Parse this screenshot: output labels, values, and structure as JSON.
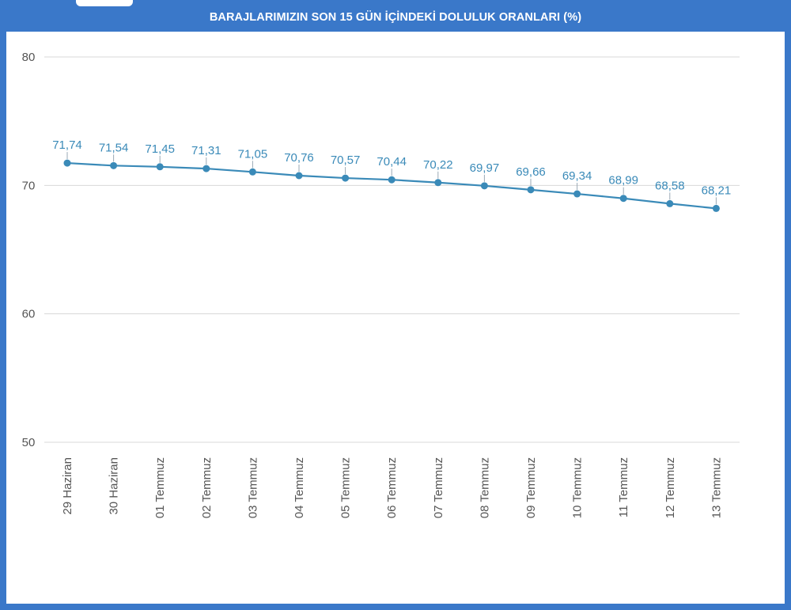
{
  "colors": {
    "frame": "#3a78c9",
    "series": "#3a8ab8",
    "grid": "#d8d8d8",
    "tick_text": "#555555"
  },
  "chart_data": {
    "type": "line",
    "title": "BARAJLARIMIZIN SON 15 GÜN İÇİNDEKİ DOLULUK ORANLARI (%)",
    "xlabel": "",
    "ylabel": "",
    "ylim": [
      50,
      80
    ],
    "yticks": [
      50,
      60,
      70,
      80
    ],
    "grid": true,
    "legend": "none",
    "categories": [
      "29 Haziran",
      "30 Haziran",
      "01 Temmuz",
      "02 Temmuz",
      "03 Temmuz",
      "04 Temmuz",
      "05 Temmuz",
      "06 Temmuz",
      "07 Temmuz",
      "08 Temmuz",
      "09 Temmuz",
      "10 Temmuz",
      "11 Temmuz",
      "12 Temmuz",
      "13 Temmuz"
    ],
    "values": [
      71.74,
      71.54,
      71.45,
      71.31,
      71.05,
      70.76,
      70.57,
      70.44,
      70.22,
      69.97,
      69.66,
      69.34,
      68.99,
      68.58,
      68.21
    ],
    "data_labels": [
      "71,74",
      "71,54",
      "71,45",
      "71,31",
      "71,05",
      "70,76",
      "70,57",
      "70,44",
      "70,22",
      "69,97",
      "69,66",
      "69,34",
      "68,99",
      "68,58",
      "68,21"
    ]
  }
}
